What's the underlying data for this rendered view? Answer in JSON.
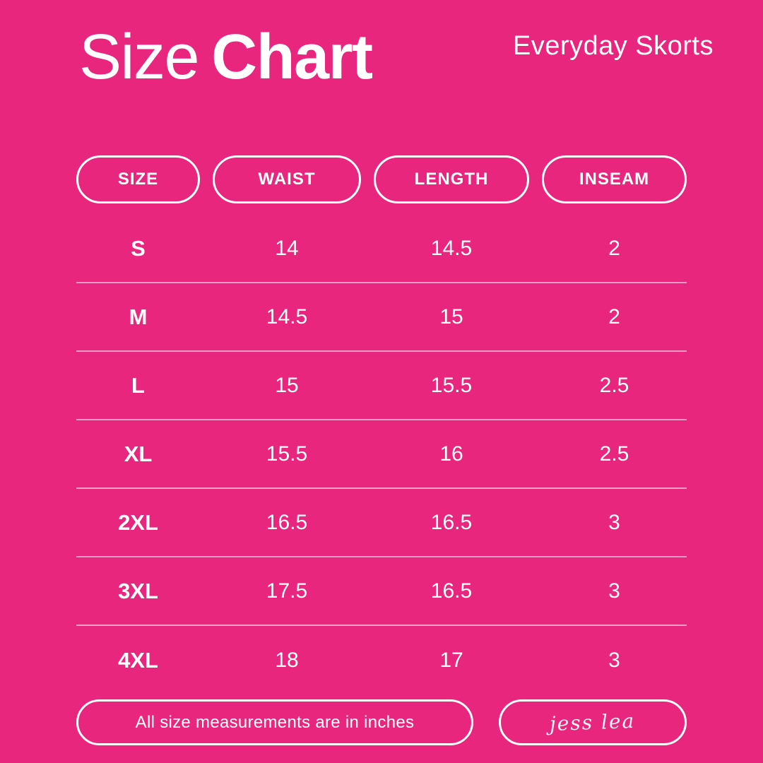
{
  "theme": {
    "background": "#E8267E",
    "text": "#FFFFFF",
    "divider": "rgba(255,255,255,0.55)"
  },
  "header": {
    "title_regular": "Size",
    "title_bold": "Chart",
    "product_name": "Everyday Skorts"
  },
  "chart_data": {
    "type": "table",
    "title": "Size Chart",
    "subtitle": "Everyday Skorts",
    "columns": [
      "SIZE",
      "WAIST",
      "LENGTH",
      "INSEAM"
    ],
    "rows": [
      [
        "S",
        "14",
        "14.5",
        "2"
      ],
      [
        "M",
        "14.5",
        "15",
        "2"
      ],
      [
        "L",
        "15",
        "15.5",
        "2.5"
      ],
      [
        "XL",
        "15.5",
        "16",
        "2.5"
      ],
      [
        "2XL",
        "16.5",
        "16.5",
        "3"
      ],
      [
        "3XL",
        "17.5",
        "16.5",
        "3"
      ],
      [
        "4XL",
        "18",
        "17",
        "3"
      ]
    ],
    "units": "inches",
    "note": "All size measurements are in inches"
  },
  "footer": {
    "note": "All size measurements are in inches",
    "signature": "jess lea"
  }
}
